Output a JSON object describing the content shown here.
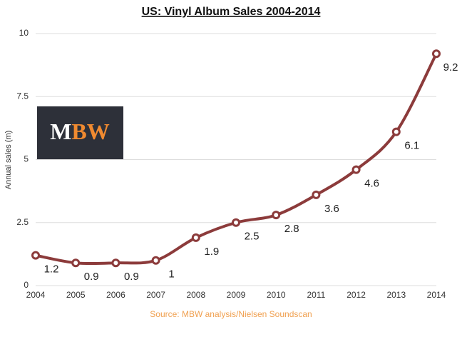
{
  "chart_data": {
    "type": "line",
    "title": "US: Vinyl Album Sales 2004-2014",
    "y_label": "Annual sales (m)",
    "source": "Source: MBW analysis/Nielsen Soundscan",
    "logo": [
      "M",
      "BW"
    ],
    "categories": [
      "2004",
      "2005",
      "2006",
      "2007",
      "2008",
      "2009",
      "2010",
      "2011",
      "2012",
      "2013",
      "2014"
    ],
    "series": [
      {
        "name": "Annual sales",
        "color": "#8c3b3b",
        "values": [
          1.2,
          0.9,
          0.9,
          1,
          1.9,
          2.5,
          2.8,
          3.6,
          4.6,
          6.1,
          9.2
        ]
      }
    ],
    "ylim": [
      0,
      10
    ],
    "yticks": [
      0,
      2.5,
      5,
      7.5,
      10
    ],
    "grid": true
  }
}
